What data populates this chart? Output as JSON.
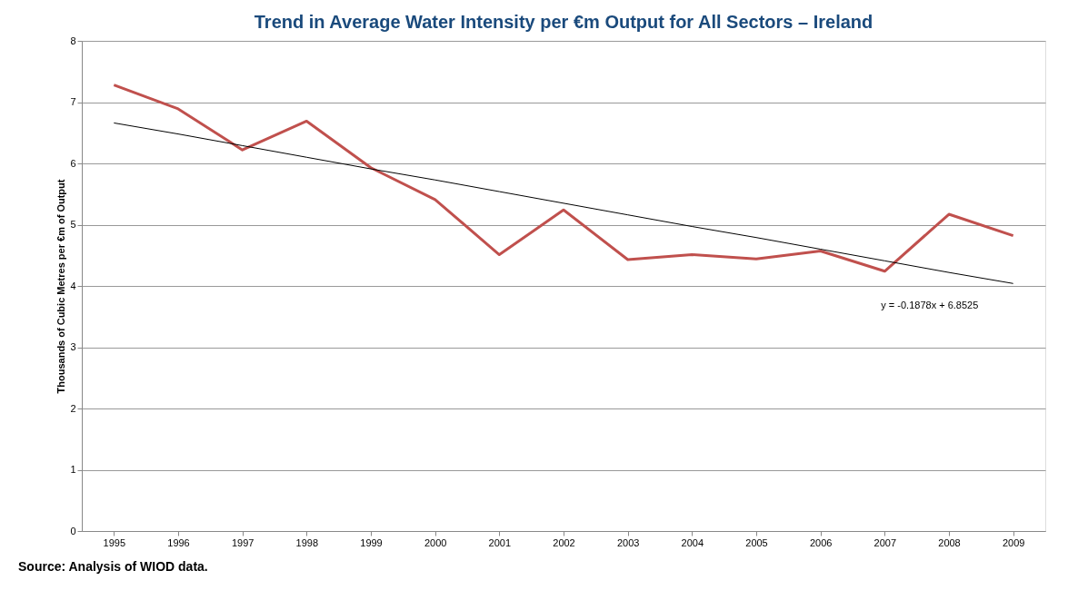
{
  "chart_data": {
    "type": "line",
    "title": "Trend in Average Water Intensity per €m Output for All Sectors – Ireland",
    "ylabel": "Thousands of Cubic Metres per €m of Output",
    "categories": [
      "1995",
      "1996",
      "1997",
      "1998",
      "1999",
      "2000",
      "2001",
      "2002",
      "2003",
      "2004",
      "2005",
      "2006",
      "2007",
      "2008",
      "2009"
    ],
    "series": [
      {
        "color": "#c0504d",
        "values": [
          7.28,
          6.89,
          6.22,
          6.69,
          5.93,
          5.41,
          4.51,
          5.24,
          4.43,
          4.51,
          4.44,
          4.57,
          4.24,
          5.17,
          4.82
        ]
      },
      {
        "type": "line",
        "color": "#000000",
        "values": [
          6.66,
          6.48,
          6.29,
          6.1,
          5.91,
          5.73,
          5.54,
          5.35,
          5.16,
          4.97,
          4.79,
          4.6,
          4.41,
          4.22,
          4.04
        ]
      }
    ],
    "ylim": [
      0,
      8
    ],
    "yticks": [
      0,
      1,
      2,
      3,
      4,
      5,
      6,
      7,
      8
    ],
    "grid": "y",
    "annotations": [
      "y = -0.1878x + 6.8525",
      "Source: Analysis of WIOD data."
    ]
  }
}
